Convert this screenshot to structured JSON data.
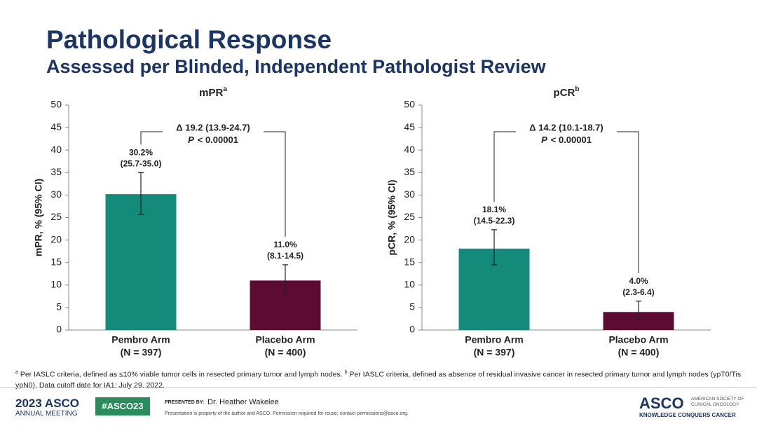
{
  "header": {
    "title": "Pathological Response",
    "subtitle": "Assessed per Blinded, Independent Pathologist Review"
  },
  "chart_data": [
    {
      "type": "bar",
      "title": "mPR",
      "title_superscript": "a",
      "y_label": "mPR, % (95% CI)",
      "categories": [
        "Pembro Arm",
        "Placebo Arm"
      ],
      "category_sublabels": [
        "(N = 397)",
        "(N = 400)"
      ],
      "values": [
        30.2,
        11.0
      ],
      "value_labels": [
        "30.2%",
        "11.0%"
      ],
      "ci_lower": [
        25.7,
        8.1
      ],
      "ci_upper": [
        35.0,
        14.5
      ],
      "ci_labels": [
        "(25.7-35.0)",
        "(8.1-14.5)"
      ],
      "colors": [
        "#138a7a",
        "#5c0b33"
      ],
      "ylim": [
        0,
        50
      ],
      "yticks": [
        0,
        5,
        10,
        15,
        20,
        25,
        30,
        35,
        40,
        45,
        50
      ],
      "annotation": {
        "delta": "Δ 19.2 (13.9-24.7)",
        "p_symbol": "P",
        "p_text": "< 0.00001"
      }
    },
    {
      "type": "bar",
      "title": "pCR",
      "title_superscript": "b",
      "y_label": "pCR, % (95% CI)",
      "categories": [
        "Pembro Arm",
        "Placebo Arm"
      ],
      "category_sublabels": [
        "(N = 397)",
        "(N = 400)"
      ],
      "values": [
        18.1,
        4.0
      ],
      "value_labels": [
        "18.1%",
        "4.0%"
      ],
      "ci_lower": [
        14.5,
        2.3
      ],
      "ci_upper": [
        22.3,
        6.4
      ],
      "ci_labels": [
        "(14.5-22.3)",
        "(2.3-6.4)"
      ],
      "colors": [
        "#138a7a",
        "#5c0b33"
      ],
      "ylim": [
        0,
        50
      ],
      "yticks": [
        0,
        5,
        10,
        15,
        20,
        25,
        30,
        35,
        40,
        45,
        50
      ],
      "annotation": {
        "delta": "Δ 14.2 (10.1-18.7)",
        "p_symbol": "P",
        "p_text": "< 0.00001"
      }
    }
  ],
  "footnote": {
    "marker_a": "a",
    "text_a": "Per IASLC criteria, defined as ≤10% viable tumor cells in resected primary tumor and lymph nodes.",
    "marker_b": "b",
    "text_b": "Per IASLC criteria, defined as absence of residual invasive cancer in resected primary tumor and lymph nodes (ypT0/Tis ypN0). Data cutoff date for IA1: July 29, 2022."
  },
  "footer": {
    "meeting_year": "2023 ASCO",
    "meeting_name": "ANNUAL MEETING",
    "hashtag": "#ASCO23",
    "presented_by": "PRESENTED BY:",
    "presenter": "Dr. Heather Wakelee",
    "disclaimer": "Presentation is property of the author and ASCO. Permission required for reuse; contact permissions@asco.org.",
    "logo": "ASCO",
    "society": "AMERICAN SOCIETY OF CLINICAL ONCOLOGY",
    "tagline": "KNOWLEDGE CONQUERS CANCER"
  }
}
